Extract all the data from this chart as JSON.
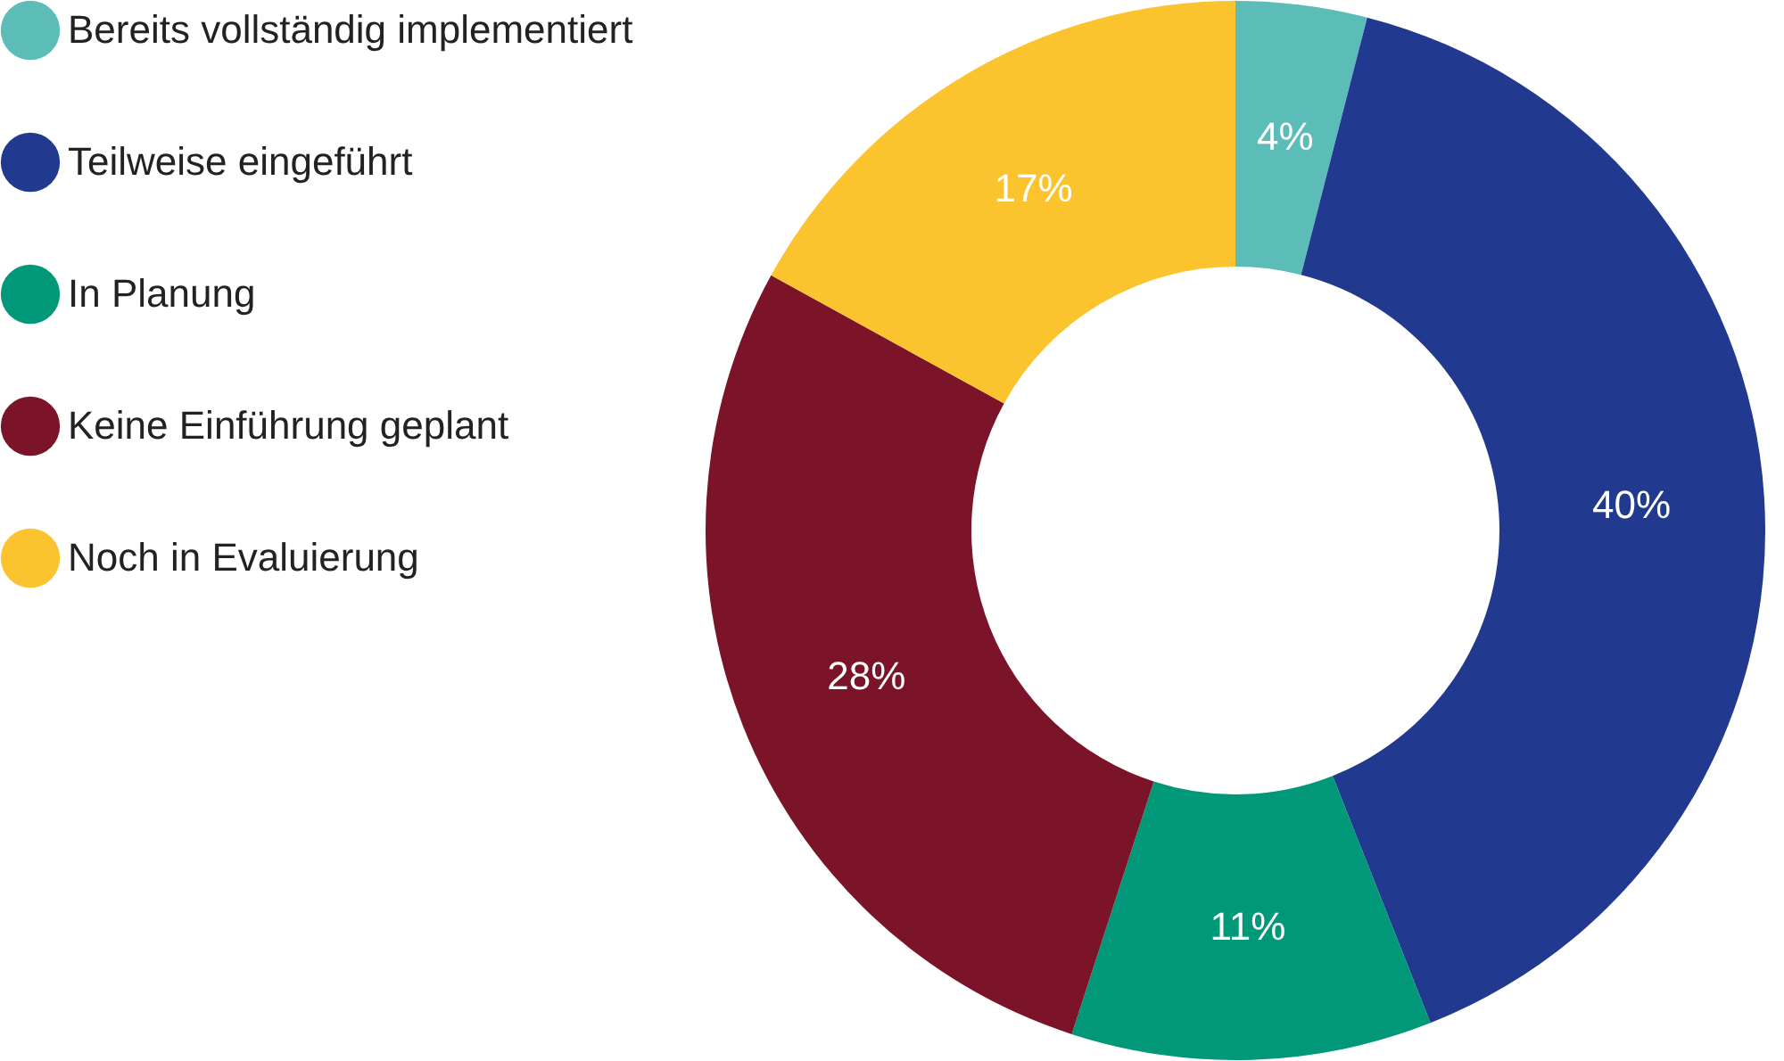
{
  "chart_data": {
    "type": "donut",
    "categories": [
      "Bereits vollständig implementiert",
      "Teilweise eingeführt",
      "In Planung",
      "Keine Einführung geplant",
      "Noch in Evaluierung"
    ],
    "values": [
      4,
      40,
      11,
      28,
      17
    ],
    "colors": [
      "#5bbcb8",
      "#213a8f",
      "#009878",
      "#7b1429",
      "#fbc32d"
    ],
    "value_labels": [
      "4%",
      "40%",
      "11%",
      "28%",
      "17%"
    ],
    "legend": "left"
  }
}
